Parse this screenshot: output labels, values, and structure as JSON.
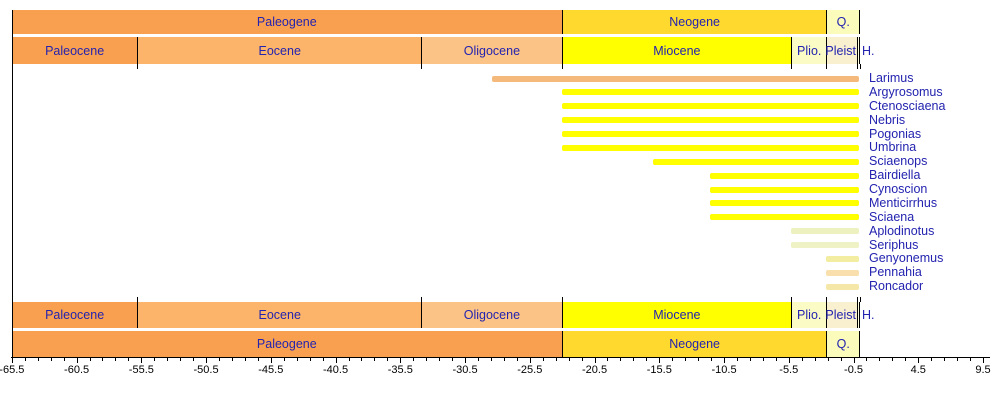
{
  "chart_data": {
    "type": "bar",
    "variant": "fossil-range-chart",
    "title": "",
    "xlabel": "",
    "x_axis": {
      "unit": "Ma",
      "min": -65.5,
      "max": 9.5,
      "major_step": 5,
      "minor_step": 1,
      "tick_labels": [
        "-65.5",
        "-60.5",
        "-55.5",
        "-50.5",
        "-45.5",
        "-40.5",
        "-35.5",
        "-30.5",
        "-25.5",
        "-20.5",
        "-15.5",
        "-10.5",
        "-5.5",
        "-0.5",
        "4.5",
        "9.5"
      ]
    },
    "timescale": {
      "periods": [
        {
          "label": "Paleogene",
          "start": -65.5,
          "end": -23.03,
          "color": "#F9A050"
        },
        {
          "label": "Neogene",
          "start": -23.03,
          "end": -2.588,
          "color": "#FFD92E"
        },
        {
          "label": "Q.",
          "start": -2.588,
          "end": 0,
          "color": "#FBFBBC"
        }
      ],
      "epochs": [
        {
          "label": "Paleocene",
          "start": -65.5,
          "end": -55.8,
          "color": "#F9A050"
        },
        {
          "label": "Eocene",
          "start": -55.8,
          "end": -33.9,
          "color": "#FBB469"
        },
        {
          "label": "Oligocene",
          "start": -33.9,
          "end": -23.03,
          "color": "#FCC386"
        },
        {
          "label": "Miocene",
          "start": -23.03,
          "end": -5.332,
          "color": "#FFFF00"
        },
        {
          "label": "Plio.",
          "start": -5.332,
          "end": -2.588,
          "color": "#FBFBC6"
        },
        {
          "label": "Pleist.",
          "start": -2.588,
          "end": -0.2,
          "color": "#F9F0CF"
        },
        {
          "label": "H.",
          "start": -0.2,
          "end": 0,
          "color": "#FDFDE0"
        }
      ]
    },
    "series": [
      {
        "name": "Larimus",
        "start": -28.4,
        "end": 0,
        "color": "#F6B97C"
      },
      {
        "name": "Argyrosomus",
        "start": -23.03,
        "end": 0,
        "color": "#FFFF00"
      },
      {
        "name": "Ctenosciaena",
        "start": -23.03,
        "end": 0,
        "color": "#FFFF00"
      },
      {
        "name": "Nebris",
        "start": -23.03,
        "end": 0,
        "color": "#FFFF00"
      },
      {
        "name": "Pogonias",
        "start": -23.03,
        "end": 0,
        "color": "#FFFF00"
      },
      {
        "name": "Umbrina",
        "start": -23.03,
        "end": 0,
        "color": "#FFFF00"
      },
      {
        "name": "Sciaenops",
        "start": -15.97,
        "end": 0,
        "color": "#FFFF00"
      },
      {
        "name": "Bairdiella",
        "start": -11.608,
        "end": 0,
        "color": "#FFFF00"
      },
      {
        "name": "Cynoscion",
        "start": -11.608,
        "end": 0,
        "color": "#FFFF00"
      },
      {
        "name": "Menticirrhus",
        "start": -11.608,
        "end": 0,
        "color": "#FFFF00"
      },
      {
        "name": "Sciaena",
        "start": -11.608,
        "end": 0,
        "color": "#FFFF00"
      },
      {
        "name": "Aplodinotus",
        "start": -5.332,
        "end": 0,
        "color": "#EDF1C0"
      },
      {
        "name": "Seriphus",
        "start": -5.332,
        "end": 0,
        "color": "#EEF2C4"
      },
      {
        "name": "Genyonemus",
        "start": -2.588,
        "end": 0,
        "color": "#F2EDA0"
      },
      {
        "name": "Pennahia",
        "start": -2.588,
        "end": 0,
        "color": "#F8DFAC"
      },
      {
        "name": "Roncador",
        "start": -2.588,
        "end": 0,
        "color": "#F5E7A8"
      }
    ],
    "holocene_outside_label": "H.",
    "label_color": "#2323B0",
    "axis_color": "#000000",
    "background_color": "#FFFFFF",
    "legend": "none",
    "grid": "off"
  }
}
